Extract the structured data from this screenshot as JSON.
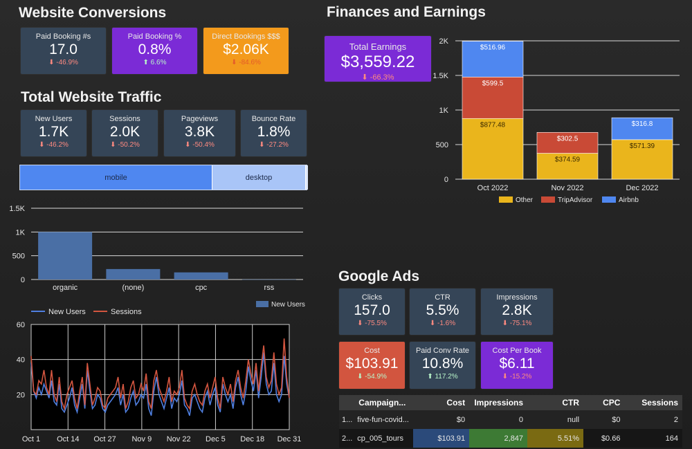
{
  "conversions": {
    "title": "Website Conversions",
    "cards": [
      {
        "label": "Paid Booking #s",
        "value": "17.0",
        "delta": "⬇ -46.9%"
      },
      {
        "label": "Paid Booking %",
        "value": "0.8%",
        "delta": "⬆ 6.6%"
      },
      {
        "label": "Direct Bookings $$$",
        "value": "$2.06K",
        "delta": "⬇ -84.6%"
      }
    ]
  },
  "traffic": {
    "title": "Total Website Traffic",
    "cards": [
      {
        "label": "New Users",
        "value": "1.7K",
        "delta": "⬇ -46.2%"
      },
      {
        "label": "Sessions",
        "value": "2.0K",
        "delta": "⬇ -50.2%"
      },
      {
        "label": "Pageviews",
        "value": "3.8K",
        "delta": "⬇ -50.4%"
      },
      {
        "label": "Bounce Rate",
        "value": "1.8%",
        "delta": "⬇ -27.2%"
      }
    ],
    "device_bar": {
      "mobile": "mobile",
      "desktop": "desktop"
    }
  },
  "finances": {
    "title": "Finances and Earnings",
    "total_card": {
      "label": "Total Earnings",
      "value": "$3,559.22",
      "delta": "⬇ -66.3%"
    }
  },
  "ads": {
    "title": "Google Ads",
    "cards": [
      {
        "label": "Clicks",
        "value": "157.0",
        "delta": "⬇ -75.5%"
      },
      {
        "label": "CTR",
        "value": "5.5%",
        "delta": "⬇ -1.6%"
      },
      {
        "label": "Impressions",
        "value": "2.8K",
        "delta": "⬇ -75.1%"
      },
      {
        "label": "Cost",
        "value": "$103.91",
        "delta": "⬇ -54.9%"
      },
      {
        "label": "Paid Conv Rate",
        "value": "10.8%",
        "delta": "⬆ 117.2%"
      },
      {
        "label": "Cost Per Book",
        "value": "$6.11",
        "delta": "⬇ -15.2%"
      }
    ],
    "table": {
      "headers": [
        "Campaign...",
        "Cost",
        "Impressions",
        "CTR",
        "CPC",
        "Sessions"
      ],
      "rows": [
        {
          "idx": "1...",
          "campaign": "five-fun-covid...",
          "cost": "$0",
          "impressions": "0",
          "ctr": "null",
          "cpc": "$0",
          "sessions": "2"
        },
        {
          "idx": "2...",
          "campaign": "cp_005_tours",
          "cost": "$103.91",
          "impressions": "2,847",
          "ctr": "5.51%",
          "cpc": "$0.66",
          "sessions": "164"
        }
      ]
    }
  },
  "colors": {
    "other": "#eab51c",
    "tripadvisor": "#c94a36",
    "airbnb": "#4f87f0",
    "bar_blue": "#4a6fa5",
    "line_new_users": "#4f7fe0",
    "line_sessions": "#d2553f"
  },
  "chart_data": [
    {
      "type": "bar",
      "stacked": true,
      "categories": [
        "Oct 2022",
        "Nov 2022",
        "Dec 2022"
      ],
      "series": [
        {
          "name": "Other",
          "values": [
            877.48,
            374.59,
            571.39
          ],
          "labels": [
            "$877.48",
            "$374.59",
            "$571.39"
          ]
        },
        {
          "name": "TripAdvisor",
          "values": [
            599.5,
            302.5,
            0
          ],
          "labels": [
            "$599.5",
            "$302.5",
            ""
          ]
        },
        {
          "name": "Airbnb",
          "values": [
            516.96,
            0,
            316.8
          ],
          "labels": [
            "$516.96",
            "",
            "$316.8"
          ]
        }
      ],
      "yticks": [
        "0",
        "500",
        "1K",
        "1.5K",
        "2K"
      ],
      "ylim": [
        0,
        2000
      ],
      "legend": "bottom"
    },
    {
      "type": "bar",
      "categories": [
        "organic",
        "(none)",
        "cpc",
        "rss"
      ],
      "series": [
        {
          "name": "New Users",
          "values": [
            1000,
            220,
            150,
            2
          ]
        }
      ],
      "yticks": [
        "0",
        "500",
        "1K",
        "1.5K"
      ],
      "ylim": [
        0,
        1500
      ],
      "legend": "bottom-right"
    },
    {
      "type": "line",
      "x_ticks": [
        "Oct 1",
        "Oct 14",
        "Oct 27",
        "Nov 9",
        "Nov 22",
        "Dec 5",
        "Dec 18",
        "Dec 31"
      ],
      "yticks": [
        "20",
        "40",
        "60"
      ],
      "ylim": [
        0,
        60
      ],
      "legend": "top",
      "series": [
        {
          "name": "New Users",
          "values": [
            38,
            22,
            18,
            24,
            20,
            26,
            22,
            18,
            28,
            16,
            14,
            26,
            12,
            10,
            14,
            18,
            24,
            14,
            10,
            18,
            26,
            12,
            34,
            22,
            12,
            14,
            20,
            18,
            12,
            10,
            14,
            16,
            18,
            20,
            24,
            14,
            20,
            10,
            12,
            18,
            22,
            14,
            16,
            20,
            18,
            26,
            12,
            8,
            22,
            30,
            20,
            16,
            12,
            18,
            24,
            12,
            18,
            16,
            20,
            28,
            14,
            12,
            8,
            18,
            20,
            16,
            12,
            10,
            18,
            22,
            14,
            20,
            24,
            14,
            10,
            26,
            20,
            16,
            20,
            12,
            24,
            30,
            20,
            14,
            22,
            36,
            28,
            22,
            34,
            18,
            30,
            44,
            26,
            20,
            22,
            38,
            20,
            16,
            20,
            42,
            26,
            18
          ]
        },
        {
          "name": "Sessions",
          "values": [
            42,
            22,
            20,
            28,
            26,
            34,
            24,
            20,
            34,
            20,
            16,
            30,
            16,
            12,
            20,
            24,
            28,
            18,
            12,
            22,
            30,
            14,
            38,
            26,
            14,
            18,
            24,
            22,
            14,
            12,
            18,
            20,
            22,
            24,
            30,
            18,
            26,
            12,
            16,
            24,
            28,
            18,
            20,
            26,
            22,
            32,
            16,
            12,
            28,
            34,
            24,
            20,
            16,
            22,
            30,
            16,
            22,
            20,
            24,
            34,
            18,
            14,
            12,
            22,
            26,
            20,
            16,
            14,
            22,
            26,
            18,
            24,
            30,
            18,
            12,
            30,
            24,
            20,
            26,
            16,
            28,
            34,
            24,
            18,
            28,
            40,
            32,
            26,
            38,
            22,
            36,
            48,
            30,
            24,
            28,
            44,
            26,
            20,
            24,
            52,
            30,
            18
          ]
        }
      ]
    }
  ]
}
